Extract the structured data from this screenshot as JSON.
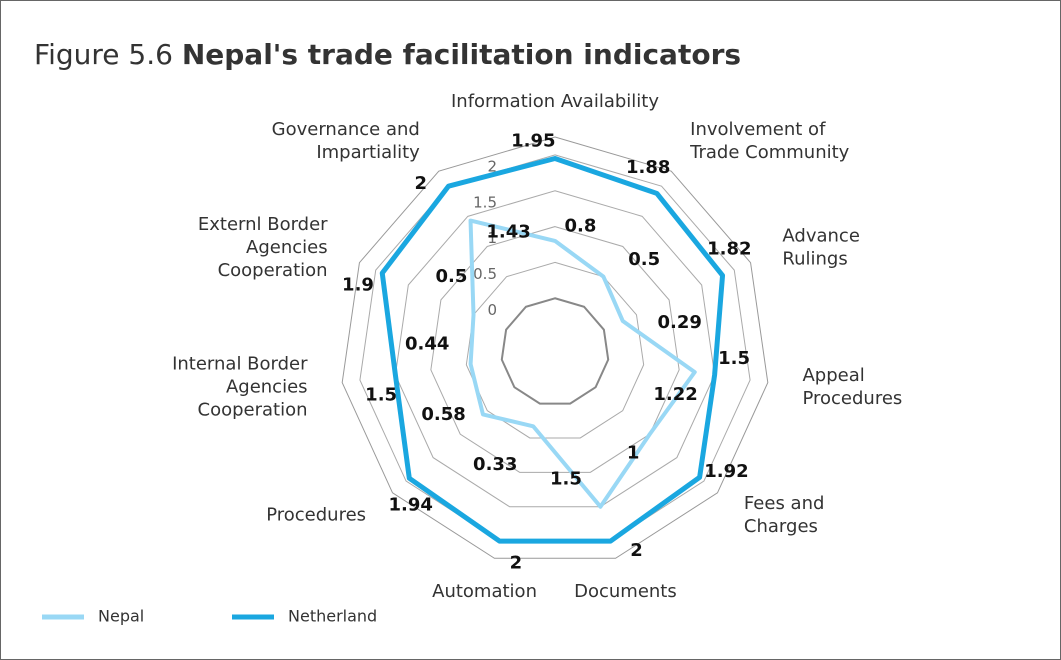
{
  "chart_data": {
    "type": "radar",
    "title_prefix": "Figure 5.6",
    "title": "Nepal's trade facilitation indicators",
    "categories": [
      "Information Availability",
      "Involvement of\nTrade Community",
      "Advance\nRulings",
      "Appeal\nProcedures",
      "Fees and\nCharges",
      "Documents",
      "Automation",
      "Procedures",
      "Internal Border\nAgencies\nCooperation",
      "Externl Border\nAgencies\nCooperation",
      "Governance and\nImpartiality"
    ],
    "series": [
      {
        "name": "Nepal",
        "color": "#99d8f5",
        "values": [
          0.8,
          0.5,
          0.29,
          1.22,
          1,
          1.5,
          0.33,
          0.58,
          0.44,
          0.5,
          1.43
        ]
      },
      {
        "name": "Netherland",
        "color": "#1aa7e0",
        "values": [
          1.95,
          1.88,
          1.82,
          1.5,
          1.92,
          2,
          2,
          1.94,
          1.5,
          1.9,
          2
        ]
      }
    ],
    "rlim": [
      -0.75,
      2.25
    ],
    "rticks": [
      0,
      0.5,
      1,
      1.5,
      2
    ],
    "grid": true,
    "legend": "bottom-left"
  }
}
